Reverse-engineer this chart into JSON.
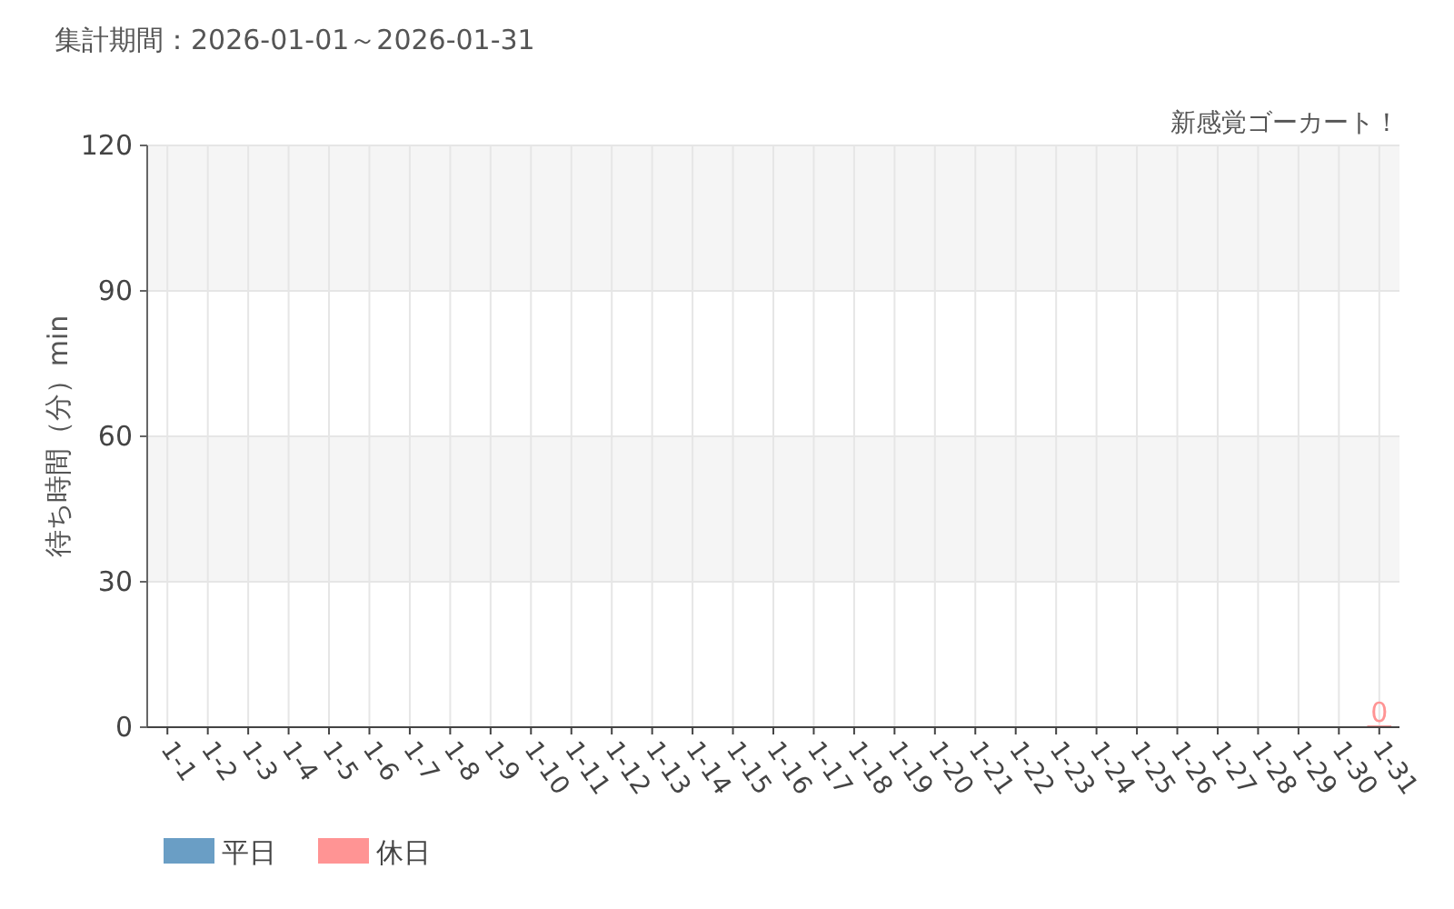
{
  "chart_data": {
    "type": "bar",
    "title": "集計期間：2026-01-01～2026-01-31",
    "subtitle": "新感覚ゴーカート！",
    "ylabel": "待ち時間（分）min",
    "categories": [
      "1-1",
      "1-2",
      "1-3",
      "1-4",
      "1-5",
      "1-6",
      "1-7",
      "1-8",
      "1-9",
      "1-10",
      "1-11",
      "1-12",
      "1-13",
      "1-14",
      "1-15",
      "1-16",
      "1-17",
      "1-18",
      "1-19",
      "1-20",
      "1-21",
      "1-22",
      "1-23",
      "1-24",
      "1-25",
      "1-26",
      "1-27",
      "1-28",
      "1-29",
      "1-30",
      "1-31"
    ],
    "series": [
      {
        "name": "平日",
        "color": "#6a9ec5",
        "values": [
          null,
          null,
          null,
          null,
          null,
          null,
          null,
          null,
          null,
          null,
          null,
          null,
          null,
          null,
          null,
          null,
          null,
          null,
          null,
          null,
          null,
          null,
          null,
          null,
          null,
          null,
          null,
          null,
          null,
          null,
          null
        ]
      },
      {
        "name": "休日",
        "color": "#ff9494",
        "values": [
          null,
          null,
          null,
          null,
          null,
          null,
          null,
          null,
          null,
          null,
          null,
          null,
          null,
          null,
          null,
          null,
          null,
          null,
          null,
          null,
          null,
          null,
          null,
          null,
          null,
          null,
          null,
          null,
          null,
          null,
          0
        ]
      }
    ],
    "stacked": true,
    "ylim": [
      0,
      120
    ],
    "yticks": [
      0,
      30,
      60,
      90,
      120
    ],
    "bands": [
      {
        "axis": "y",
        "from": 30,
        "to": 60,
        "color": "#f5f5f5"
      },
      {
        "axis": "y",
        "from": 90,
        "to": 120,
        "color": "#f5f5f5"
      }
    ],
    "grid": true,
    "data_labels": true,
    "legend": "bottom left"
  }
}
